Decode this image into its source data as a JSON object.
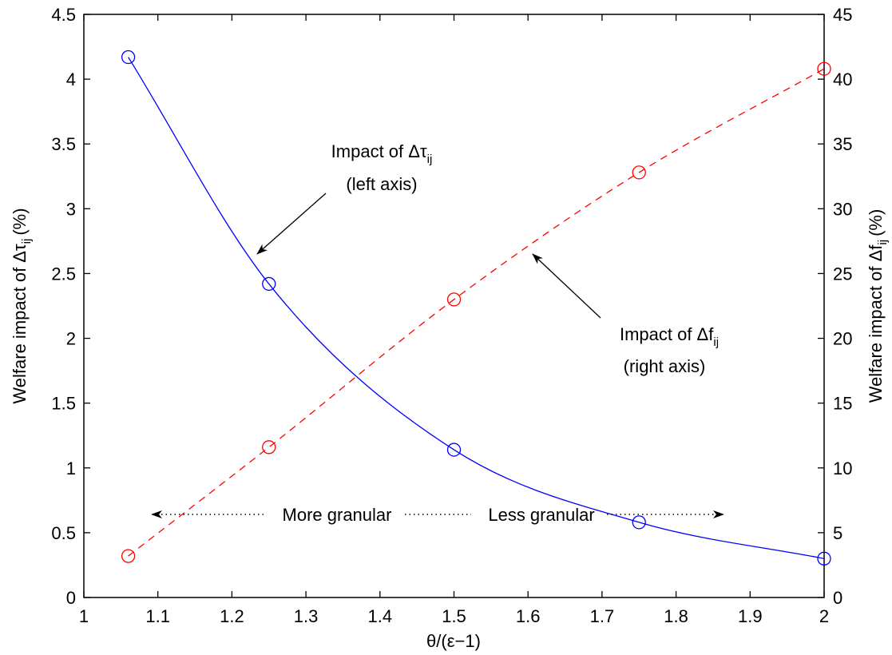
{
  "chart_data": {
    "type": "line",
    "xlabel": "θ/(ε−1)",
    "ylabel_left": {
      "main": "Welfare impact of Δτ",
      "sub": "ij",
      "suffix": "(%)"
    },
    "ylabel_right": {
      "main": "Welfare impact of Δf",
      "sub": "ij",
      "suffix": "(%)"
    },
    "xlim": [
      1,
      2
    ],
    "ylim_left": [
      0,
      4.5
    ],
    "ylim_right": [
      0,
      45
    ],
    "x_ticks": [
      "1",
      "1.1",
      "1.2",
      "1.3",
      "1.4",
      "1.5",
      "1.6",
      "1.7",
      "1.8",
      "1.9",
      "2"
    ],
    "y_left_ticks": [
      "0",
      "0.5",
      "1",
      "1.5",
      "2",
      "2.5",
      "3",
      "3.5",
      "4",
      "4.5"
    ],
    "y_right_ticks": [
      "0",
      "5",
      "10",
      "15",
      "20",
      "25",
      "30",
      "35",
      "40",
      "45"
    ],
    "grid": false,
    "series": [
      {
        "axis": "left",
        "color": "#0000ff",
        "line_style": "solid",
        "marker": "circle",
        "x": [
          1.06,
          1.25,
          1.5,
          1.75,
          2.0
        ],
        "y": [
          4.17,
          2.42,
          1.14,
          0.58,
          0.3
        ]
      },
      {
        "axis": "right",
        "color": "#ff0000",
        "line_style": "dashed",
        "marker": "circle",
        "x": [
          1.06,
          1.25,
          1.5,
          1.75,
          2.0
        ],
        "y": [
          3.2,
          11.6,
          23.0,
          32.8,
          40.8
        ]
      }
    ],
    "annotations": {
      "tau": {
        "line1": "Impact of Δτ",
        "sub": "ij",
        "line2": "(left axis)"
      },
      "f": {
        "line1": "Impact of Δf",
        "sub": "ij",
        "line2": "(right axis)"
      },
      "more": "More granular",
      "less": "Less granular"
    }
  }
}
